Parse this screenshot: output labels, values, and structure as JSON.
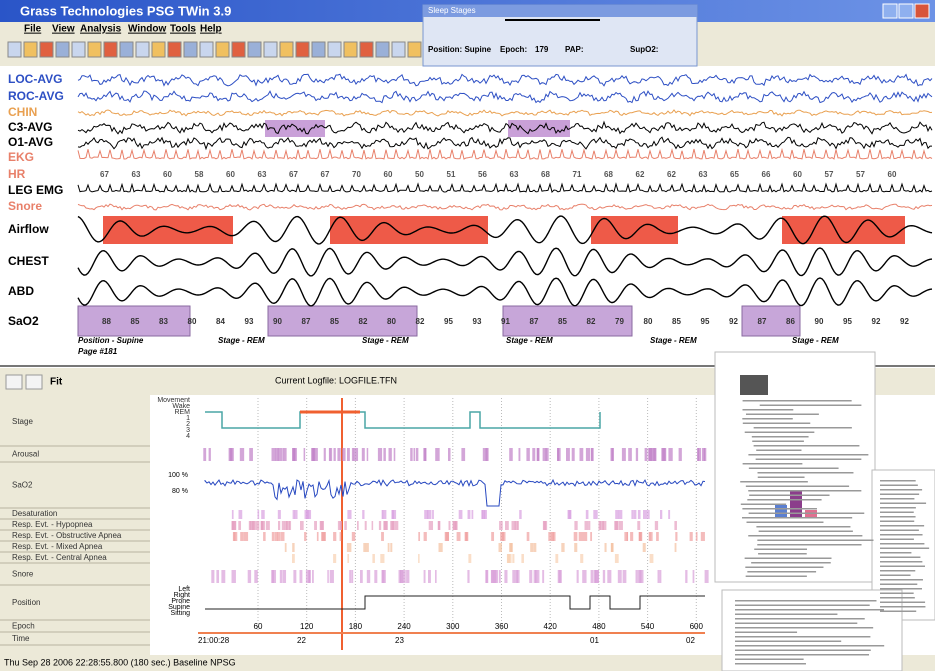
{
  "window": {
    "title": "Grass Technologies PSG TWin 3.9",
    "menu": [
      "File",
      "View",
      "Analysis",
      "Window",
      "Tools",
      "Help"
    ]
  },
  "sleep_stages_panel": {
    "title": "Sleep Stages",
    "position": "Position: Supine",
    "epoch_label": "Epoch:",
    "epoch": "179",
    "pap": "PAP:",
    "spo2": "SupO2:"
  },
  "channels": [
    "LOC-AVG",
    "ROC-AVG",
    "CHIN",
    "C3-AVG",
    "O1-AVG",
    "EKG",
    "HR",
    "LEG EMG",
    "Snore",
    "Airflow",
    "CHEST",
    "ABD",
    "SaO2"
  ],
  "hr_values": [
    "67",
    "63",
    "60",
    "58",
    "60",
    "63",
    "67",
    "67",
    "70",
    "60",
    "50",
    "51",
    "56",
    "63",
    "68",
    "71",
    "68",
    "62",
    "62",
    "63",
    "65",
    "66",
    "60",
    "57",
    "57",
    "60"
  ],
  "sao2_values": [
    "88",
    "85",
    "83",
    "80",
    "84",
    "93",
    "90",
    "87",
    "85",
    "82",
    "80",
    "82",
    "95",
    "93",
    "91",
    "87",
    "85",
    "82",
    "79",
    "80",
    "85",
    "95",
    "92",
    "87",
    "86",
    "90",
    "95",
    "92",
    "92"
  ],
  "notes": {
    "position": "Position - Supine",
    "page": "Page #181",
    "stage": [
      "Stage - REM",
      "Stage - REM",
      "Stage - REM",
      "Stage - REM",
      "Stage - REM"
    ]
  },
  "lower_toolbar": {
    "fit": "Fit",
    "logfile": "Current Logfile: LOGFILE.TFN"
  },
  "summary": {
    "rows": [
      "Stage",
      "Arousal",
      "SaO2",
      "Desaturation",
      "Resp. Evt. - Hypopnea",
      "Resp. Evt. - Obstructive Apnea",
      "Resp. Evt. - Mixed Apnea",
      "Resp. Evt. - Central Apnea",
      "Snore",
      "Position",
      "Epoch",
      "Time"
    ],
    "stage_levels": [
      "Movement",
      "Wake",
      "REM",
      "1",
      "2",
      "3",
      "4"
    ],
    "sao2_levels": [
      "100 %",
      "80 %"
    ],
    "positions": [
      "Left",
      "Right",
      "Prone",
      "Supine",
      "Sitting"
    ],
    "time_ticks": [
      "60",
      "120",
      "180",
      "240",
      "300",
      "360",
      "420",
      "480",
      "540",
      "600"
    ],
    "start_time": "21:00:28",
    "epochs": [
      "22",
      "23",
      "01",
      "02"
    ]
  },
  "status": "Thu Sep 28 2006   22:28:55.800 (180 sec.) Baseline NPSG"
}
